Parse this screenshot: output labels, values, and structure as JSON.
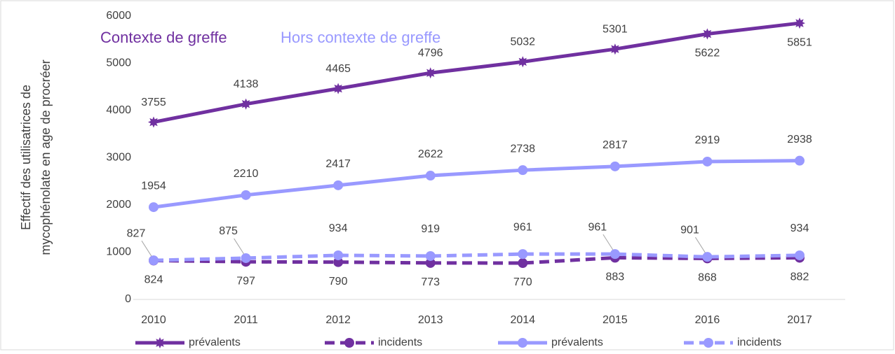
{
  "chart_data": {
    "type": "line",
    "annotations": [
      {
        "text": "Contexte de greffe",
        "color": "#7030a0"
      },
      {
        "text": "Hors contexte de greffe",
        "color": "#9999ff"
      }
    ],
    "y_label": [
      "Effectif des utilisatrices de",
      "mycophénolate  en age de procréer"
    ],
    "categories": [
      "2010",
      "2011",
      "2012",
      "2013",
      "2014",
      "2015",
      "2016",
      "2017"
    ],
    "series": [
      {
        "name": "prévalents",
        "color": "#7030a0",
        "dashed": false,
        "marker": "star",
        "values": [
          3755,
          4138,
          4465,
          4796,
          5032,
          5301,
          5622,
          5851
        ]
      },
      {
        "name": "incidents",
        "color": "#7030a0",
        "dashed": true,
        "marker": "circle",
        "values": [
          824,
          797,
          790,
          773,
          770,
          883,
          868,
          882
        ]
      },
      {
        "name": "prévalents",
        "color": "#9999ff",
        "dashed": false,
        "marker": "circle",
        "values": [
          1954,
          2210,
          2417,
          2622,
          2738,
          2817,
          2919,
          2938
        ]
      },
      {
        "name": "incidents",
        "color": "#9999ff",
        "dashed": true,
        "marker": "circle",
        "values": [
          827,
          875,
          934,
          919,
          961,
          961,
          901,
          934
        ]
      }
    ],
    "ylim": [
      0,
      6000
    ],
    "yticks": [
      0,
      1000,
      2000,
      3000,
      4000,
      5000,
      6000
    ],
    "grid": false,
    "legend": "bottom"
  }
}
